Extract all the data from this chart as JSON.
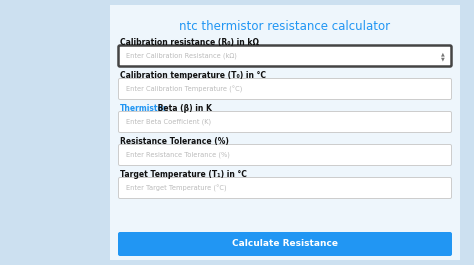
{
  "title": "ntc thermistor resistance calculator",
  "title_color": "#2196F3",
  "bg_color": "#e8f4fc",
  "outer_bg": "#cce0f0",
  "fields": [
    {
      "label": "Calibration resistance (R₀) in kΩ",
      "placeholder": "Enter Calibration Resistance (kΩ)",
      "label_bold": true,
      "border_color": "#444444",
      "border_lw": 1.8,
      "has_spinner": true
    },
    {
      "label": "Calibration temperature (T₀) in °C",
      "placeholder": "Enter Calibration Temperature (°C)",
      "label_bold": true,
      "border_color": "#cccccc",
      "border_lw": 0.7,
      "has_spinner": false
    },
    {
      "label_parts": [
        {
          "text": "Thermistor",
          "color": "#2196F3"
        },
        {
          "text": " Beta (β) in K",
          "color": "#111111"
        }
      ],
      "placeholder": "Enter Beta Coefficient (K)",
      "label_bold": true,
      "border_color": "#cccccc",
      "border_lw": 0.7,
      "has_spinner": false
    },
    {
      "label": "Resistance Tolerance (%)",
      "placeholder": "Enter Resistance Tolerance (%)",
      "label_bold": true,
      "border_color": "#cccccc",
      "border_lw": 0.7,
      "has_spinner": false
    },
    {
      "label": "Target Temperature (T₁) in °C",
      "placeholder": "Enter Target Temperature (°C)",
      "label_bold": true,
      "border_color": "#cccccc",
      "border_lw": 0.7,
      "has_spinner": false
    }
  ],
  "button_text": "Calculate Resistance",
  "button_color": "#2196F3",
  "button_text_color": "#ffffff",
  "placeholder_color": "#bbbbbb",
  "label_color": "#111111",
  "card_bg": "#eef6fc",
  "field_bg": "#ffffff"
}
